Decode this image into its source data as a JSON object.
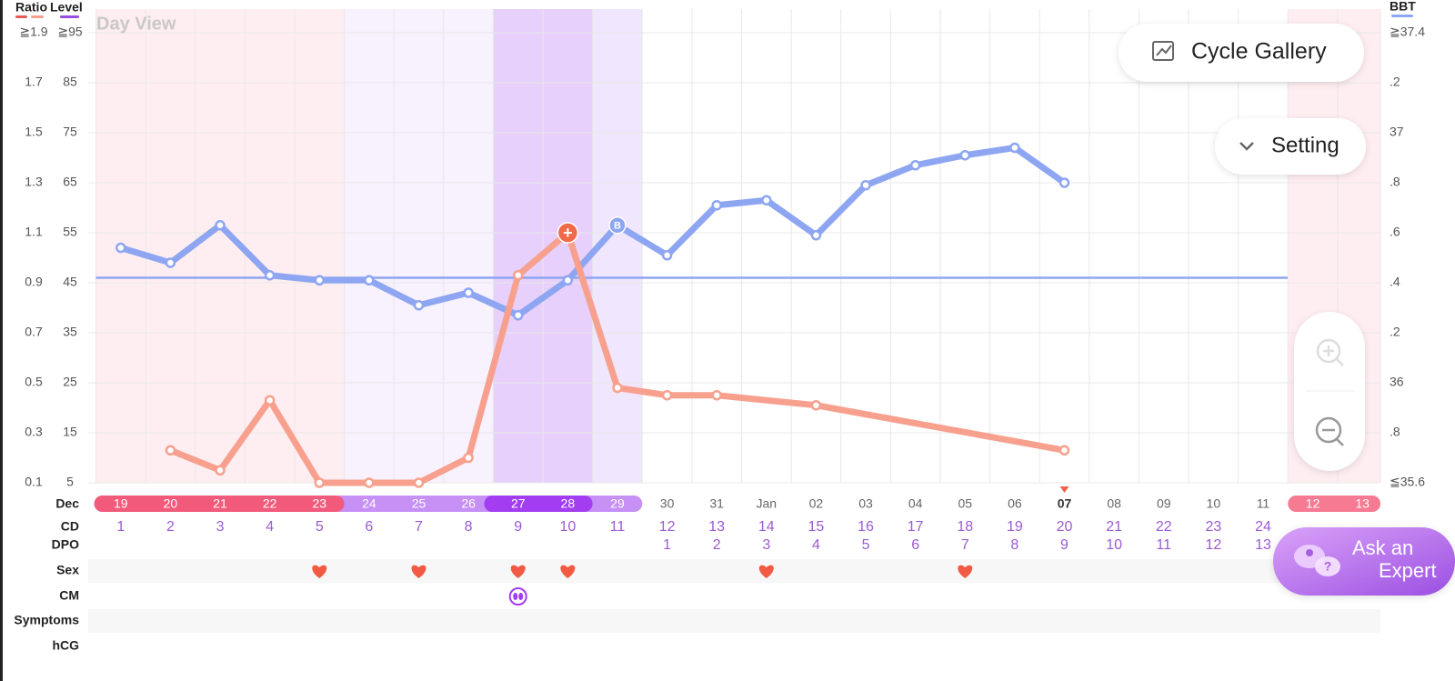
{
  "ui": {
    "view": "Day View",
    "cycle_gallery": "Cycle Gallery",
    "setting": "Setting",
    "ask_expert": [
      "Ask an",
      "Expert"
    ]
  },
  "chart_data": {
    "type": "line",
    "level_label": "Level",
    "ylim": [
      0.1,
      1.9
    ],
    "yticks": [
      {
        "value": 1.9,
        "label": "≧1.9"
      },
      1.7,
      1.5,
      1.3,
      1.1,
      0.9,
      0.7,
      0.5,
      0.3,
      0.1
    ],
    "level_lim": [
      5,
      95
    ],
    "level_ticks": [
      {
        "value": 95,
        "label": "≧95"
      },
      85,
      75,
      65,
      55,
      45,
      35,
      25,
      15,
      5
    ],
    "y2lim": [
      35.6,
      37.4
    ],
    "y2ticks": [
      {
        "value": 37.4,
        "label": "≧37.4"
      },
      {
        "value": 37.2,
        "label": ".2"
      },
      37,
      {
        "value": 36.8,
        "label": ".8"
      },
      {
        "value": 36.6,
        "label": ".6"
      },
      {
        "value": 36.4,
        "label": ".4"
      },
      {
        "value": 36.2,
        "label": ".2"
      },
      36,
      {
        "value": 35.8,
        "label": ".8"
      },
      {
        "value": 35.6,
        "label": "≦35.6"
      }
    ],
    "xlim": [
      0.5,
      26.5
    ],
    "month": "Dec",
    "dates": [
      "19",
      "20",
      "21",
      "22",
      "23",
      "24",
      "25",
      "26",
      "27",
      "28",
      "29",
      "30",
      "31",
      "Jan",
      "02",
      "03",
      "04",
      "05",
      "06",
      "07",
      "08",
      "09",
      "10",
      "11",
      "12",
      "13"
    ],
    "cd_label": "CD",
    "cd": [
      1,
      2,
      3,
      4,
      5,
      6,
      7,
      8,
      9,
      10,
      11,
      12,
      13,
      14,
      15,
      16,
      17,
      18,
      19,
      20,
      21,
      22,
      23,
      24
    ],
    "dpo_label": "DPO",
    "dpo": [
      null,
      null,
      null,
      null,
      null,
      null,
      null,
      null,
      null,
      null,
      null,
      1,
      2,
      3,
      4,
      5,
      6,
      7,
      8,
      9,
      10,
      11,
      12,
      13
    ],
    "coverline": 36.42,
    "series": [
      {
        "name": "BBT",
        "color": "#8ea6f2",
        "axis": "y2",
        "x": [
          1,
          2,
          3,
          4,
          5,
          6,
          7,
          8,
          9,
          10,
          11,
          12,
          13,
          14,
          15,
          16,
          17,
          18,
          19,
          20
        ],
        "values": [
          36.54,
          36.48,
          36.63,
          36.43,
          36.41,
          36.41,
          36.31,
          36.36,
          36.27,
          36.41,
          36.63,
          36.51,
          36.71,
          36.73,
          36.59,
          36.79,
          36.87,
          36.91,
          36.94,
          36.8
        ]
      },
      {
        "name": "Ratio",
        "color": "#f7a08e",
        "x": [
          2,
          3,
          4,
          5,
          6,
          7,
          8,
          9,
          10,
          11,
          12,
          13,
          15,
          20
        ],
        "values": [
          0.23,
          0.15,
          0.43,
          0.1,
          0.1,
          0.1,
          0.2,
          0.93,
          1.1,
          0.48,
          0.45,
          0.45,
          0.41,
          0.23
        ]
      }
    ],
    "annotations": [
      {
        "text": "B",
        "x": 11,
        "y": 36.63,
        "axis": "y2"
      },
      {
        "text": "+",
        "x": 10,
        "y": 1.1
      }
    ],
    "rows": [
      {
        "label": "Sex",
        "days": [
          5,
          7,
          9,
          10,
          14,
          18
        ]
      },
      {
        "label": "CM",
        "days": [
          9
        ]
      },
      {
        "label": "Symptoms",
        "days": []
      },
      {
        "label": "hCG",
        "days": []
      }
    ]
  }
}
